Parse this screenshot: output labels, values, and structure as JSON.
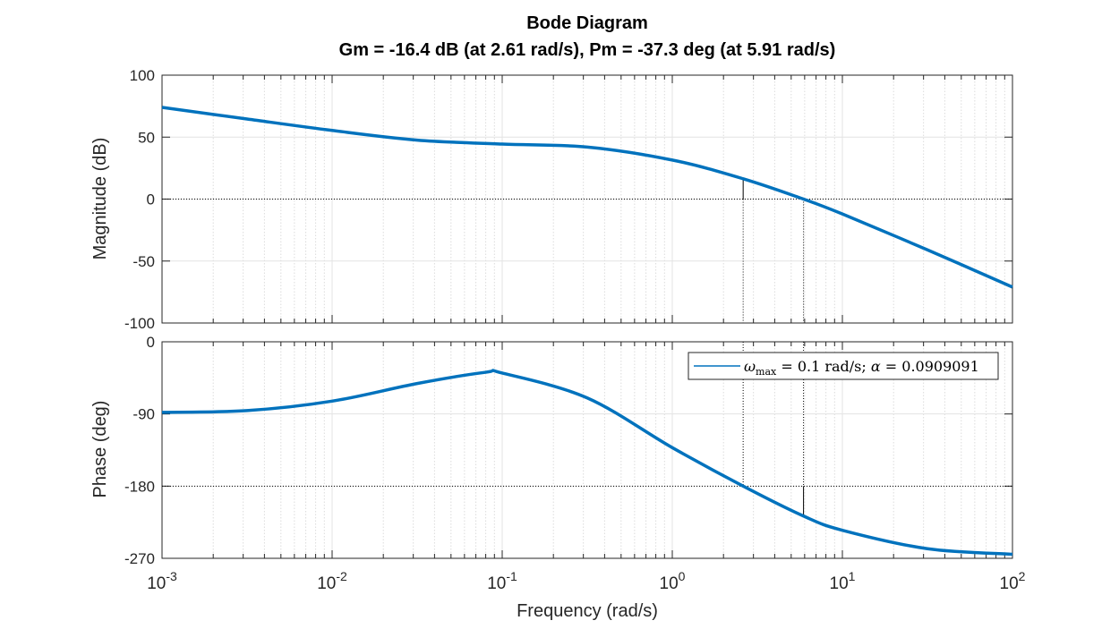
{
  "chart_data": {
    "type": "line",
    "title": "Bode Diagram",
    "subtitle": "Gm = -16.4 dB (at 2.61 rad/s),  Pm = -37.3 deg (at 5.91 rad/s)",
    "xlabel": "Frequency  (rad/s)",
    "xscale": "log",
    "xlim": [
      0.001,
      100
    ],
    "x_ticks": [
      {
        "value": 0.001,
        "base": "10",
        "exp": "-3"
      },
      {
        "value": 0.01,
        "base": "10",
        "exp": "-2"
      },
      {
        "value": 0.1,
        "base": "10",
        "exp": "-1"
      },
      {
        "value": 1,
        "base": "10",
        "exp": "0"
      },
      {
        "value": 10,
        "base": "10",
        "exp": "1"
      },
      {
        "value": 100,
        "base": "10",
        "exp": "2"
      }
    ],
    "grid": true,
    "line_color": "#0072BD",
    "magnitude": {
      "ylabel": "Magnitude (dB)",
      "ylim": [
        -100,
        100
      ],
      "y_ticks": [
        {
          "value": 100,
          "label": "100"
        },
        {
          "value": 50,
          "label": "50"
        },
        {
          "value": 0,
          "label": "0"
        },
        {
          "value": -50,
          "label": "-50"
        },
        {
          "value": -100,
          "label": "-100"
        }
      ],
      "points": [
        [
          0.001,
          74
        ],
        [
          0.003162,
          64.6
        ],
        [
          0.01,
          55.4
        ],
        [
          0.03162,
          47.6
        ],
        [
          0.1,
          44.4
        ],
        [
          0.3162,
          42
        ],
        [
          1,
          31.5
        ],
        [
          2.61,
          16.4
        ],
        [
          5.91,
          0
        ],
        [
          10,
          -12
        ],
        [
          31.62,
          -41
        ],
        [
          100,
          -71
        ]
      ]
    },
    "phase": {
      "ylabel": "Phase (deg)",
      "ylim": [
        -270,
        0
      ],
      "y_ticks": [
        {
          "value": 0,
          "label": "0"
        },
        {
          "value": -90,
          "label": "-90"
        },
        {
          "value": -180,
          "label": "-180"
        },
        {
          "value": -270,
          "label": "-270"
        }
      ],
      "points": [
        [
          0.001,
          -88
        ],
        [
          0.003162,
          -85.8
        ],
        [
          0.01,
          -74
        ],
        [
          0.03162,
          -52
        ],
        [
          0.08,
          -38
        ],
        [
          0.1,
          -39
        ],
        [
          0.3162,
          -70
        ],
        [
          1,
          -132
        ],
        [
          2.61,
          -180
        ],
        [
          5.91,
          -217.3
        ],
        [
          10,
          -235
        ],
        [
          31.62,
          -258
        ],
        [
          100,
          -265
        ]
      ]
    },
    "gain_margin": {
      "frequency": 2.61,
      "magnitude_db": 16.4
    },
    "phase_margin": {
      "frequency": 5.91,
      "phase_deg": -217.3
    },
    "legend": {
      "placement": "top-right",
      "entries": [
        {
          "omega": "ω",
          "sub": "max",
          "rest": " = 0.1 rad/s; ",
          "alpha": "α",
          "value": " = 0.0909091"
        }
      ]
    }
  }
}
